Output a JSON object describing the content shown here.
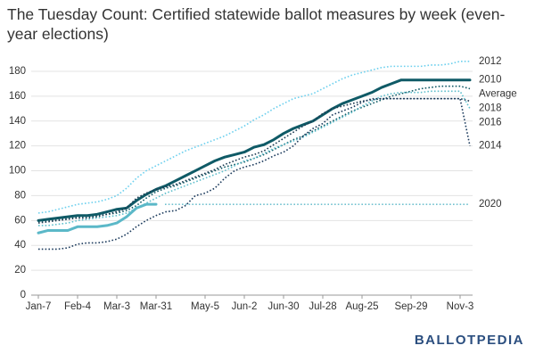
{
  "chart_data": {
    "type": "line",
    "title": "The Tuesday Count: Certified statewide ballot measures by week (even-year elections)",
    "logo": "BALLOTPEDIA",
    "categories": [
      "Jan-7",
      null,
      null,
      null,
      "Feb-4",
      null,
      null,
      null,
      "Mar-3",
      null,
      null,
      null,
      "Mar-31",
      null,
      null,
      null,
      null,
      "May-5",
      null,
      null,
      null,
      "Jun-2",
      null,
      null,
      null,
      "Jun-30",
      null,
      null,
      null,
      "Jul-28",
      null,
      null,
      null,
      "Aug-25",
      null,
      null,
      null,
      null,
      "Sep-29",
      null,
      null,
      null,
      null,
      "Nov-3",
      null
    ],
    "ylim": [
      0,
      190
    ],
    "yticks": [
      0,
      20,
      40,
      60,
      80,
      100,
      120,
      140,
      160,
      180
    ],
    "grid": true,
    "series": [
      {
        "name": "2012",
        "color": "#6dd0ee",
        "style": "dotted",
        "values": [
          66,
          67,
          69,
          71,
          73,
          74,
          75,
          77,
          80,
          86,
          94,
          100,
          104,
          108,
          112,
          116,
          119,
          122,
          125,
          128,
          132,
          136,
          141,
          145,
          150,
          154,
          158,
          160,
          162,
          166,
          170,
          174,
          177,
          179,
          181,
          183,
          184,
          184,
          184,
          184,
          185,
          185,
          186,
          188,
          188
        ]
      },
      {
        "name": "2010",
        "color": "#0f5a66",
        "style": "solid",
        "values": [
          60,
          61,
          62,
          63,
          64,
          64,
          65,
          67,
          69,
          70,
          76,
          81,
          85,
          88,
          92,
          96,
          100,
          104,
          108,
          111,
          113,
          115,
          119,
          121,
          125,
          130,
          134,
          137,
          140,
          145,
          150,
          154,
          157,
          160,
          163,
          167,
          170,
          173,
          173,
          173,
          173,
          173,
          173,
          173,
          173
        ]
      },
      {
        "name": "Average",
        "color": "#0f5a66",
        "style": "dotted",
        "values": [
          59,
          60,
          61,
          62,
          63,
          63,
          64,
          65,
          66,
          68,
          72,
          78,
          83,
          86,
          88,
          91,
          94,
          97,
          100,
          103,
          105,
          107,
          110,
          113,
          117,
          121,
          125,
          128,
          132,
          136,
          140,
          144,
          148,
          151,
          154,
          157,
          160,
          162,
          164,
          166,
          167,
          168,
          168,
          168,
          166
        ]
      },
      {
        "name": "2018",
        "color": "#1c3b52",
        "style": "dotted",
        "values": [
          58,
          59,
          60,
          61,
          62,
          62,
          63,
          65,
          67,
          70,
          78,
          82,
          85,
          87,
          89,
          92,
          95,
          98,
          101,
          105,
          108,
          111,
          113,
          116,
          121,
          126,
          131,
          136,
          140,
          146,
          150,
          152,
          154,
          156,
          157,
          158,
          158,
          158,
          158,
          158,
          158,
          158,
          158,
          158,
          156
        ]
      },
      {
        "name": "2016",
        "color": "#5fbfcc",
        "style": "dotted",
        "values": [
          56,
          56,
          57,
          58,
          60,
          61,
          62,
          63,
          64,
          66,
          70,
          74,
          78,
          82,
          85,
          88,
          91,
          94,
          97,
          100,
          104,
          108,
          110,
          114,
          118,
          121,
          124,
          127,
          131,
          135,
          139,
          143,
          147,
          152,
          156,
          160,
          162,
          163,
          163,
          163,
          164,
          164,
          164,
          164,
          150
        ]
      },
      {
        "name": "2014",
        "color": "#1b3a5c",
        "style": "dotted",
        "values": [
          37,
          37,
          37,
          38,
          41,
          42,
          42,
          43,
          45,
          49,
          55,
          60,
          64,
          67,
          68,
          72,
          80,
          82,
          86,
          94,
          100,
          103,
          105,
          108,
          112,
          115,
          120,
          128,
          134,
          138,
          145,
          148,
          151,
          155,
          158,
          158,
          158,
          158,
          158,
          158,
          158,
          158,
          158,
          158,
          120
        ]
      },
      {
        "name": "2020",
        "color": "#5bb8c8",
        "style": "solid",
        "extend": true,
        "values": [
          50,
          52,
          52,
          52,
          55,
          55,
          55,
          56,
          58,
          63,
          70,
          73,
          73,
          null,
          null,
          null,
          null,
          null,
          null,
          null,
          null,
          null,
          null,
          null,
          null,
          null,
          null,
          null,
          null,
          null,
          null,
          null,
          null,
          null,
          null,
          null,
          null,
          null,
          null,
          null,
          null,
          null,
          null,
          null,
          null
        ]
      }
    ]
  }
}
